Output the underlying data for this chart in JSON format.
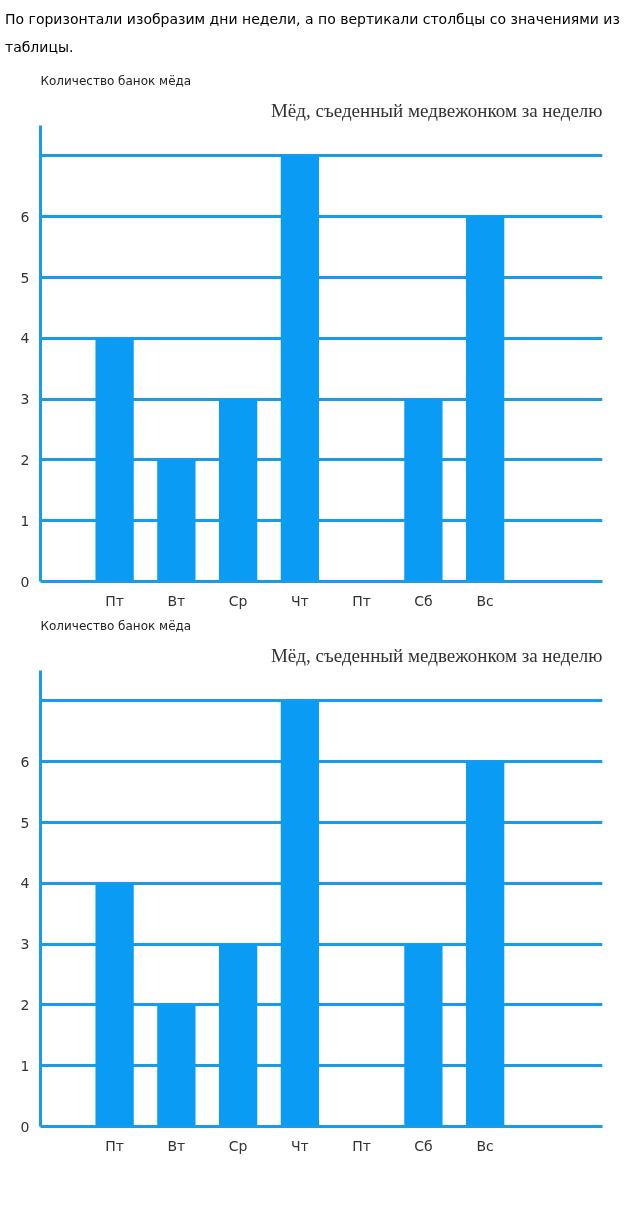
{
  "chart_data": [
    {
      "type": "bar",
      "title": "Мёд, съеденный медвежонком за неделю",
      "ylabel": "Количество банок мёда",
      "annotations": [
        "По горизонтали изобразим дни недели, а по вертикали столбцы со значениями из таблицы."
      ],
      "categories": [
        "Пт",
        "Вт",
        "Ср",
        "Чт",
        "Пт",
        "Сб",
        "Вс"
      ],
      "values": [
        4,
        2,
        3,
        7,
        0,
        3,
        6
      ],
      "color": "#0a9cf5",
      "ylim": [
        0,
        7.5
      ],
      "yticks": [
        0,
        1,
        2,
        3,
        4,
        5,
        6,
        {
          "value": 7,
          "label": null
        }
      ],
      "grid": "y"
    },
    {
      "type": "bar",
      "title": "Мёд, съеденный медвежонком за неделю",
      "ylabel": "Количество банок мёда",
      "categories": [
        "Пт",
        "Вт",
        "Ср",
        "Чт",
        "Пт",
        "Сб",
        "Вс"
      ],
      "values": [
        4,
        2,
        3,
        7,
        0,
        3,
        6
      ],
      "color": "#0a9cf5",
      "ylim": [
        0,
        7.5
      ],
      "yticks": [
        0,
        1,
        2,
        3,
        4,
        5,
        6,
        {
          "value": 7,
          "label": null
        }
      ],
      "grid": "y"
    }
  ]
}
